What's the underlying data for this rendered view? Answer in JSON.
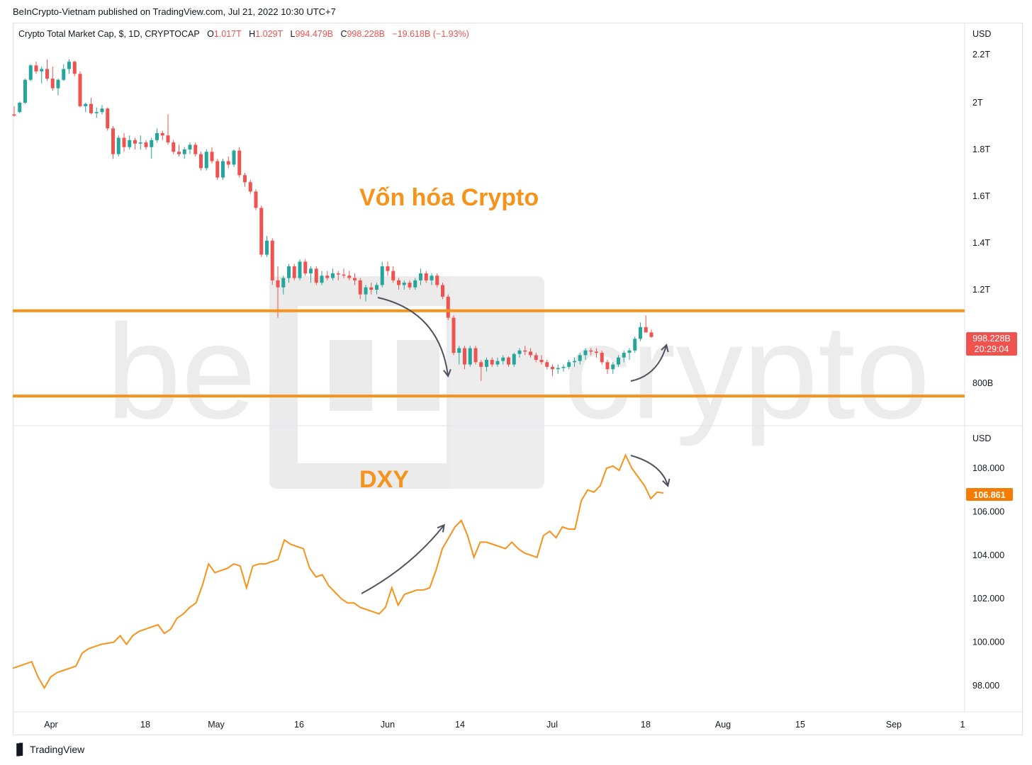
{
  "header": {
    "published_text": "BeInCrypto-Vietnam published on TradingView.com, Jul 21, 2022 10:30 UTC+7"
  },
  "legend": {
    "symbol": "Crypto Total Market Cap, $, 1D, CRYPTOCAP",
    "o_label": "O",
    "o_value": "1.017T",
    "h_label": "H",
    "h_value": "1.029T",
    "l_label": "L",
    "l_value": "994.479B",
    "c_label": "C",
    "c_value": "998.228B",
    "change": "−19.618B (−1.93%)"
  },
  "annotations": {
    "top_title": "Vốn hóa Crypto",
    "bottom_title": "DXY",
    "watermark": "beINcrypto"
  },
  "price_tags": {
    "mcap_price": "998.228B",
    "mcap_countdown": "20:29:04",
    "dxy_price": "106.861"
  },
  "footer": {
    "brand": "TradingView",
    "logo": "tradingview-logo-icon"
  },
  "colors": {
    "up": "#26a69a",
    "down": "#ef5350",
    "dxy_line": "#f7931a",
    "level_lines": "#f7931a",
    "arrows": "#50535e",
    "title": "#f7931a",
    "dxy_tag": "#f57c00",
    "mcap_tag": "#ef5350"
  },
  "chart_data": [
    {
      "type": "candlestick",
      "title": "Crypto Total Market Cap, $, 1D, CRYPTOCAP",
      "y_unit": "USD",
      "y_ticks": [
        "2.2T",
        "2T",
        "1.8T",
        "1.6T",
        "1.4T",
        "1.2T",
        "800B"
      ],
      "y_tick_values": [
        2200,
        2000,
        1800,
        1600,
        1400,
        1200,
        800
      ],
      "ylim": [
        730,
        2270
      ],
      "y_units_note": "billions USD",
      "horizontal_levels": [
        1110,
        745
      ],
      "x_ticks": [
        "Apr",
        "18",
        "May",
        "16",
        "Jun",
        "14",
        "Jul",
        "18",
        "Aug",
        "15",
        "Sep",
        "1"
      ],
      "x_start": "2022-03-25",
      "candles": [
        [
          1950,
          1985,
          1940,
          1945
        ],
        [
          1960,
          2005,
          1955,
          2000
        ],
        [
          2000,
          2100,
          1995,
          2095
        ],
        [
          2095,
          2160,
          2090,
          2155
        ],
        [
          2155,
          2170,
          2120,
          2130
        ],
        [
          2130,
          2150,
          2080,
          2140
        ],
        [
          2140,
          2180,
          2090,
          2100
        ],
        [
          2100,
          2150,
          2050,
          2060
        ],
        [
          2060,
          2100,
          2030,
          2095
        ],
        [
          2095,
          2160,
          2090,
          2140
        ],
        [
          2140,
          2180,
          2120,
          2170
        ],
        [
          2170,
          2175,
          2110,
          2120
        ],
        [
          2120,
          2130,
          1980,
          1985
        ],
        [
          1985,
          2000,
          1960,
          1995
        ],
        [
          1995,
          2020,
          1950,
          1955
        ],
        [
          1955,
          1980,
          1935,
          1960
        ],
        [
          1960,
          1990,
          1950,
          1975
        ],
        [
          1975,
          1980,
          1880,
          1890
        ],
        [
          1890,
          1900,
          1760,
          1780
        ],
        [
          1780,
          1860,
          1770,
          1850
        ],
        [
          1850,
          1870,
          1790,
          1810
        ],
        [
          1810,
          1860,
          1800,
          1840
        ],
        [
          1840,
          1850,
          1800,
          1825
        ],
        [
          1825,
          1860,
          1800,
          1830
        ],
        [
          1830,
          1840,
          1800,
          1810
        ],
        [
          1810,
          1850,
          1760,
          1840
        ],
        [
          1840,
          1890,
          1830,
          1870
        ],
        [
          1870,
          1880,
          1840,
          1860
        ],
        [
          1860,
          1950,
          1820,
          1830
        ],
        [
          1830,
          1840,
          1780,
          1790
        ],
        [
          1790,
          1820,
          1770,
          1780
        ],
        [
          1780,
          1810,
          1760,
          1800
        ],
        [
          1800,
          1830,
          1780,
          1820
        ],
        [
          1820,
          1830,
          1770,
          1780
        ],
        [
          1780,
          1790,
          1710,
          1720
        ],
        [
          1720,
          1800,
          1710,
          1790
        ],
        [
          1790,
          1810,
          1740,
          1750
        ],
        [
          1750,
          1760,
          1670,
          1680
        ],
        [
          1680,
          1760,
          1670,
          1750
        ],
        [
          1750,
          1770,
          1720,
          1735
        ],
        [
          1735,
          1800,
          1725,
          1795
        ],
        [
          1795,
          1810,
          1680,
          1690
        ],
        [
          1690,
          1700,
          1640,
          1660
        ],
        [
          1660,
          1670,
          1610,
          1620
        ],
        [
          1620,
          1630,
          1540,
          1550
        ],
        [
          1550,
          1560,
          1340,
          1350
        ],
        [
          1350,
          1430,
          1340,
          1410
        ],
        [
          1410,
          1420,
          1220,
          1240
        ],
        [
          1240,
          1300,
          1080,
          1210
        ],
        [
          1210,
          1260,
          1180,
          1250
        ],
        [
          1250,
          1310,
          1230,
          1300
        ],
        [
          1300,
          1310,
          1240,
          1250
        ],
        [
          1250,
          1330,
          1240,
          1320
        ],
        [
          1320,
          1330,
          1260,
          1270
        ],
        [
          1270,
          1300,
          1230,
          1290
        ],
        [
          1290,
          1300,
          1220,
          1230
        ],
        [
          1230,
          1280,
          1220,
          1260
        ],
        [
          1260,
          1280,
          1240,
          1250
        ],
        [
          1250,
          1290,
          1240,
          1270
        ],
        [
          1270,
          1280,
          1240,
          1265
        ],
        [
          1265,
          1290,
          1250,
          1260
        ],
        [
          1260,
          1280,
          1240,
          1250
        ],
        [
          1250,
          1270,
          1220,
          1240
        ],
        [
          1240,
          1250,
          1160,
          1180
        ],
        [
          1180,
          1220,
          1150,
          1210
        ],
        [
          1210,
          1230,
          1180,
          1200
        ],
        [
          1200,
          1230,
          1180,
          1220
        ],
        [
          1220,
          1320,
          1210,
          1300
        ],
        [
          1300,
          1320,
          1260,
          1280
        ],
        [
          1280,
          1300,
          1230,
          1240
        ],
        [
          1240,
          1250,
          1200,
          1220
        ],
        [
          1220,
          1240,
          1200,
          1230
        ],
        [
          1230,
          1240,
          1200,
          1210
        ],
        [
          1210,
          1250,
          1200,
          1240
        ],
        [
          1240,
          1290,
          1220,
          1270
        ],
        [
          1270,
          1280,
          1230,
          1240
        ],
        [
          1240,
          1270,
          1220,
          1260
        ],
        [
          1260,
          1270,
          1210,
          1220
        ],
        [
          1220,
          1230,
          1160,
          1170
        ],
        [
          1170,
          1180,
          1070,
          1080
        ],
        [
          1080,
          1090,
          920,
          930
        ],
        [
          930,
          960,
          880,
          950
        ],
        [
          950,
          960,
          860,
          880
        ],
        [
          880,
          960,
          870,
          950
        ],
        [
          950,
          960,
          880,
          890
        ],
        [
          890,
          900,
          810,
          870
        ],
        [
          870,
          910,
          850,
          900
        ],
        [
          900,
          910,
          870,
          880
        ],
        [
          880,
          910,
          870,
          895
        ],
        [
          895,
          920,
          880,
          910
        ],
        [
          910,
          915,
          870,
          880
        ],
        [
          880,
          930,
          870,
          925
        ],
        [
          925,
          950,
          910,
          940
        ],
        [
          940,
          960,
          920,
          935
        ],
        [
          935,
          950,
          910,
          920
        ],
        [
          920,
          930,
          890,
          900
        ],
        [
          900,
          920,
          880,
          890
        ],
        [
          890,
          900,
          860,
          870
        ],
        [
          870,
          880,
          830,
          860
        ],
        [
          860,
          880,
          840,
          865
        ],
        [
          865,
          880,
          850,
          870
        ],
        [
          870,
          900,
          860,
          890
        ],
        [
          890,
          910,
          870,
          895
        ],
        [
          895,
          930,
          880,
          920
        ],
        [
          920,
          950,
          900,
          940
        ],
        [
          940,
          950,
          920,
          935
        ],
        [
          935,
          950,
          910,
          930
        ],
        [
          930,
          940,
          880,
          890
        ],
        [
          890,
          900,
          840,
          860
        ],
        [
          860,
          890,
          840,
          880
        ],
        [
          880,
          920,
          870,
          910
        ],
        [
          910,
          940,
          890,
          930
        ],
        [
          930,
          950,
          900,
          940
        ],
        [
          940,
          1000,
          930,
          990
        ],
        [
          990,
          1060,
          980,
          1040
        ],
        [
          1040,
          1090,
          1020,
          1017
        ],
        [
          1017,
          1029,
          994,
          998
        ]
      ],
      "last_price": 998.228
    },
    {
      "type": "line",
      "title": "DXY",
      "y_unit": "USD",
      "y_ticks": [
        "108.000",
        "106.000",
        "104.000",
        "102.000",
        "100.000",
        "98.000"
      ],
      "y_tick_values": [
        108,
        106,
        104,
        102,
        100,
        98
      ],
      "ylim": [
        97.3,
        109.2
      ],
      "x_start": "2022-03-25",
      "series": [
        {
          "values": [
            98.8,
            98.9,
            99.0,
            99.1,
            98.4,
            97.9,
            98.4,
            98.6,
            98.7,
            98.8,
            98.9,
            99.5,
            99.7,
            99.8,
            99.9,
            99.95,
            100.0,
            100.3,
            99.9,
            100.3,
            100.5,
            100.6,
            100.7,
            100.8,
            100.4,
            100.6,
            101.1,
            101.3,
            101.6,
            101.8,
            102.6,
            103.6,
            103.2,
            103.3,
            103.4,
            103.6,
            103.5,
            102.5,
            103.5,
            103.6,
            103.6,
            103.7,
            103.8,
            104.7,
            104.5,
            104.4,
            104.3,
            103.4,
            103.0,
            103.1,
            102.6,
            102.3,
            102.0,
            101.8,
            101.8,
            101.6,
            101.5,
            101.4,
            101.3,
            101.6,
            102.5,
            101.7,
            102.2,
            102.3,
            102.4,
            102.4,
            102.5,
            103.3,
            104.3,
            104.8,
            105.3,
            105.6,
            104.9,
            103.9,
            104.6,
            104.6,
            104.5,
            104.4,
            104.3,
            104.6,
            104.3,
            104.1,
            104.0,
            103.9,
            104.9,
            105.1,
            104.8,
            105.3,
            105.2,
            105.2,
            106.5,
            107.0,
            106.9,
            107.2,
            108.0,
            108.1,
            107.9,
            108.6,
            108.0,
            107.6,
            107.2,
            106.6,
            106.9,
            106.861
          ]
        }
      ],
      "last_price": 106.861
    }
  ]
}
